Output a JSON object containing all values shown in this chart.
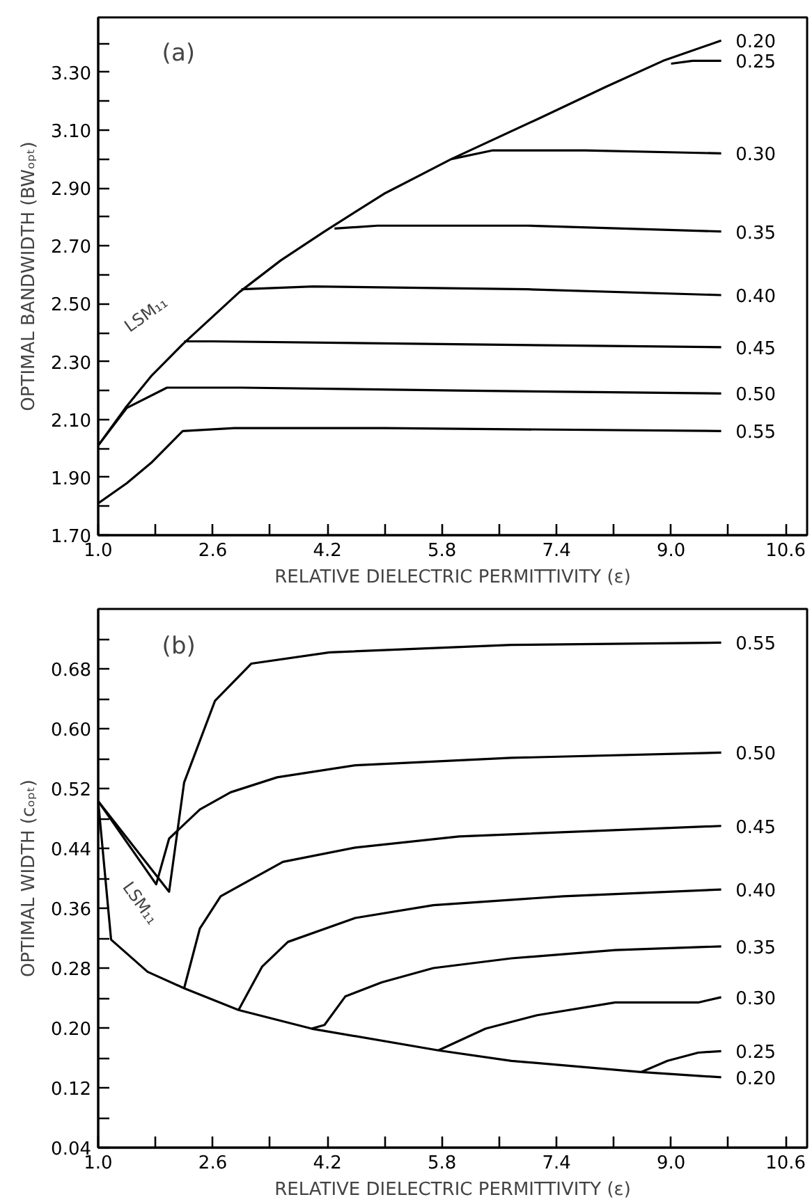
{
  "chart_data": [
    {
      "type": "line",
      "xlabel": "RELATIVE DIELECTRIC PERMITTIVITY (ε)",
      "ylabel": "OPTIMAL BANDWIDTH (BWₒₚₜ)",
      "xlim": [
        1.0,
        10.9
      ],
      "ylim": [
        1.7,
        3.49
      ],
      "xticks": [
        {
          "value": 1.0,
          "label": "1.0"
        },
        {
          "value": 1.8,
          "label": null
        },
        2.6,
        {
          "value": 3.4,
          "label": null
        },
        4.2,
        {
          "value": 5.0,
          "label": null
        },
        5.8,
        {
          "value": 6.6,
          "label": null
        },
        7.4,
        {
          "value": 8.2,
          "label": null
        },
        {
          "value": 9.0,
          "label": "9.0"
        },
        {
          "value": 9.8,
          "label": null
        },
        10.6
      ],
      "yticks": [
        {
          "value": 1.7,
          "label": "1.70"
        },
        {
          "value": 1.8,
          "label": null
        },
        {
          "value": 1.9,
          "label": "1.90"
        },
        {
          "value": 2.0,
          "label": null
        },
        {
          "value": 2.1,
          "label": "2.10"
        },
        {
          "value": 2.2,
          "label": null
        },
        {
          "value": 2.3,
          "label": "2.30"
        },
        {
          "value": 2.4,
          "label": null
        },
        {
          "value": 2.5,
          "label": "2.50"
        },
        {
          "value": 2.6,
          "label": null
        },
        {
          "value": 2.7,
          "label": "2.70"
        },
        {
          "value": 2.8,
          "label": null
        },
        {
          "value": 2.9,
          "label": "2.90"
        },
        {
          "value": 3.0,
          "label": null
        },
        {
          "value": 3.1,
          "label": "3.10"
        },
        {
          "value": 3.2,
          "label": null
        },
        {
          "value": 3.3,
          "label": "3.30"
        },
        {
          "value": 3.4,
          "label": null
        }
      ],
      "annotations": [
        "(a)",
        "LSM₁₁"
      ],
      "series": [
        {
          "name": "0.20",
          "color": "#000000",
          "x": [
            1.0,
            1.38,
            1.74,
            2.18,
            2.97,
            3.55,
            4.16,
            4.99,
            5.93,
            7.15,
            8.09,
            8.89,
            9.7
          ],
          "values": [
            2.01,
            2.14,
            2.25,
            2.36,
            2.54,
            2.65,
            2.75,
            2.88,
            3.0,
            3.14,
            3.25,
            3.34,
            3.41
          ]
        },
        {
          "name": "0.25",
          "color": "#000000",
          "x": [
            9.0,
            9.3,
            9.7
          ],
          "values": [
            3.33,
            3.34,
            3.34
          ]
        },
        {
          "name": "0.30",
          "color": "#000000",
          "x": [
            5.93,
            6.5,
            7.8,
            9.7
          ],
          "values": [
            3.0,
            3.03,
            3.03,
            3.02
          ]
        },
        {
          "name": "0.35",
          "color": "#000000",
          "x": [
            4.3,
            4.9,
            7.0,
            9.7
          ],
          "values": [
            2.76,
            2.77,
            2.77,
            2.75
          ]
        },
        {
          "name": "0.40",
          "color": "#000000",
          "x": [
            3.0,
            4.0,
            7.0,
            9.7
          ],
          "values": [
            2.55,
            2.56,
            2.55,
            2.53
          ]
        },
        {
          "name": "0.45",
          "color": "#000000",
          "x": [
            2.2,
            2.6,
            6.0,
            9.7
          ],
          "values": [
            2.37,
            2.37,
            2.36,
            2.35
          ]
        },
        {
          "name": "0.50",
          "color": "#000000",
          "x": [
            1.0,
            1.4,
            1.96,
            3.0,
            6.0,
            9.7
          ],
          "values": [
            2.01,
            2.14,
            2.21,
            2.21,
            2.2,
            2.19
          ]
        },
        {
          "name": "0.55",
          "color": "#000000",
          "x": [
            1.0,
            1.4,
            1.74,
            2.18,
            2.9,
            5.0,
            9.7
          ],
          "values": [
            1.81,
            1.88,
            1.95,
            2.06,
            2.07,
            2.07,
            2.06
          ]
        }
      ]
    },
    {
      "type": "line",
      "xlabel": "RELATIVE DIELECTRIC PERMITTIVITY (ε)",
      "ylabel": "OPTIMAL WIDTH (cₒₚₜ)",
      "xlim": [
        1.0,
        10.9
      ],
      "ylim": [
        0.04,
        0.76
      ],
      "xticks": [
        {
          "value": 1.0,
          "label": "1.0"
        },
        {
          "value": 1.8,
          "label": null
        },
        2.6,
        {
          "value": 3.4,
          "label": null
        },
        4.2,
        {
          "value": 5.0,
          "label": null
        },
        5.8,
        {
          "value": 6.6,
          "label": null
        },
        7.4,
        {
          "value": 8.2,
          "label": null
        },
        {
          "value": 9.0,
          "label": "9.0"
        },
        {
          "value": 9.8,
          "label": null
        },
        10.6
      ],
      "yticks": [
        {
          "value": 0.04,
          "label": "0.04"
        },
        {
          "value": 0.08,
          "label": null
        },
        {
          "value": 0.12,
          "label": "0.12"
        },
        {
          "value": 0.16,
          "label": null
        },
        {
          "value": 0.2,
          "label": "0.20"
        },
        {
          "value": 0.24,
          "label": null
        },
        {
          "value": 0.28,
          "label": "0.28"
        },
        {
          "value": 0.32,
          "label": null
        },
        {
          "value": 0.36,
          "label": "0.36"
        },
        {
          "value": 0.4,
          "label": null
        },
        {
          "value": 0.44,
          "label": "0.44"
        },
        {
          "value": 0.48,
          "label": null
        },
        {
          "value": 0.52,
          "label": "0.52"
        },
        {
          "value": 0.56,
          "label": null
        },
        {
          "value": 0.6,
          "label": "0.60"
        },
        {
          "value": 0.64,
          "label": null
        },
        {
          "value": 0.68,
          "label": "0.68"
        },
        {
          "value": 0.72,
          "label": null
        }
      ],
      "annotations": [
        "(b)",
        "LSM₁₁"
      ],
      "series": [
        {
          "name": "0.55",
          "color": "#000000",
          "x": [
            1.0,
            1.99,
            2.2,
            2.63,
            3.14,
            4.23,
            6.77,
            9.7
          ],
          "values": [
            0.503,
            0.382,
            0.528,
            0.637,
            0.687,
            0.702,
            0.712,
            0.715
          ]
        },
        {
          "name": "0.50",
          "color": "#000000",
          "x": [
            1.0,
            1.81,
            1.99,
            2.42,
            2.85,
            3.5,
            4.59,
            6.77,
            9.7
          ],
          "values": [
            0.503,
            0.392,
            0.453,
            0.492,
            0.515,
            0.535,
            0.551,
            0.561,
            0.568
          ]
        },
        {
          "name": "0.45",
          "color": "#000000",
          "x": [
            2.2,
            2.42,
            2.71,
            3.58,
            4.59,
            6.04,
            9.7
          ],
          "values": [
            0.253,
            0.333,
            0.376,
            0.422,
            0.441,
            0.456,
            0.47
          ]
        },
        {
          "name": "0.40",
          "color": "#000000",
          "x": [
            2.96,
            3.29,
            3.65,
            4.59,
            5.68,
            7.49,
            9.7
          ],
          "values": [
            0.224,
            0.282,
            0.315,
            0.347,
            0.364,
            0.376,
            0.385
          ]
        },
        {
          "name": "0.35",
          "color": "#000000",
          "x": [
            3.98,
            4.16,
            4.45,
            4.96,
            5.68,
            6.77,
            8.22,
            9.7
          ],
          "values": [
            0.199,
            0.204,
            0.242,
            0.261,
            0.28,
            0.293,
            0.304,
            0.309
          ]
        },
        {
          "name": "0.30",
          "color": "#000000",
          "x": [
            5.75,
            6.41,
            7.13,
            8.22,
            9.38,
            9.7
          ],
          "values": [
            0.17,
            0.199,
            0.217,
            0.234,
            0.234,
            0.241
          ]
        },
        {
          "name": "0.25",
          "color": "#000000",
          "x": [
            8.58,
            8.95,
            9.38,
            9.7
          ],
          "values": [
            0.141,
            0.156,
            0.167,
            0.169
          ]
        },
        {
          "name": "0.20",
          "color": "#000000",
          "x": [
            1.0,
            1.18,
            1.69,
            2.2,
            2.96,
            3.98,
            5.75,
            6.77,
            8.58,
            9.7
          ],
          "values": [
            0.503,
            0.318,
            0.275,
            0.253,
            0.224,
            0.199,
            0.17,
            0.156,
            0.141,
            0.134
          ]
        }
      ]
    }
  ]
}
